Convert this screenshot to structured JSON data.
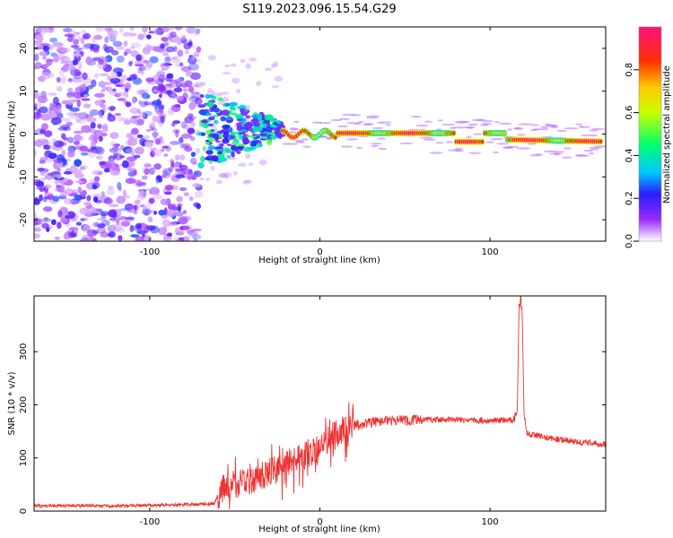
{
  "title": "S119.2023.096.15.54.G29",
  "colors": {
    "signal": "#ee3333",
    "axis": "#000000",
    "background": "#ffffff"
  },
  "chart_data": [
    {
      "type": "heatmap",
      "xlabel": "Height of straight line (km)",
      "ylabel": "Frequency (Hz)",
      "xlim": [
        -168,
        168
      ],
      "ylim": [
        -25,
        25
      ],
      "xticks": [
        -100,
        0,
        100
      ],
      "yticks": [
        -20,
        -10,
        0,
        10,
        20
      ],
      "colorbar": {
        "label": "Normalized spectral amplitude",
        "range": [
          0,
          1
        ],
        "ticks": [
          0.0,
          0.2,
          0.4,
          0.6,
          0.8
        ],
        "colormap": "rainbow"
      },
      "description_regions": [
        {
          "x_range": [
            -168,
            -70
          ],
          "freq_range": [
            -25,
            25
          ],
          "amplitude": [
            0.05,
            0.25
          ],
          "pattern": "scattered noise"
        },
        {
          "x_range": [
            -70,
            -20
          ],
          "freq_range": [
            -8,
            10
          ],
          "amplitude": [
            0.15,
            0.5
          ],
          "pattern": "multipath spread"
        },
        {
          "x_range": [
            -20,
            168
          ],
          "freq_center": [
            1,
            -2
          ],
          "amplitude": [
            0.6,
            1.0
          ],
          "pattern": "narrow line"
        }
      ]
    },
    {
      "type": "line",
      "xlabel": "Height of straight line (km)",
      "ylabel": "SNR (10 * v/v)",
      "xlim": [
        -168,
        168
      ],
      "ylim": [
        0,
        405
      ],
      "xticks": [
        -100,
        0,
        100
      ],
      "yticks": [
        0,
        100,
        200,
        300
      ],
      "series": [
        {
          "color": "#ee3333",
          "profile": [
            [
              -168,
              10
            ],
            [
              -120,
              10
            ],
            [
              -80,
              12
            ],
            [
              -62,
              14
            ],
            [
              -58,
              45
            ],
            [
              -50,
              55
            ],
            [
              -40,
              60
            ],
            [
              -30,
              75
            ],
            [
              -20,
              90
            ],
            [
              -10,
              105
            ],
            [
              0,
              125
            ],
            [
              10,
              150
            ],
            [
              20,
              162
            ],
            [
              40,
              170
            ],
            [
              60,
              172
            ],
            [
              80,
              172
            ],
            [
              100,
              170
            ],
            [
              114,
              172
            ],
            [
              116,
              185
            ],
            [
              117,
              380
            ],
            [
              118,
              400
            ],
            [
              119,
              370
            ],
            [
              120,
              180
            ],
            [
              122,
              145
            ],
            [
              140,
              135
            ],
            [
              168,
              125
            ]
          ]
        }
      ]
    }
  ]
}
